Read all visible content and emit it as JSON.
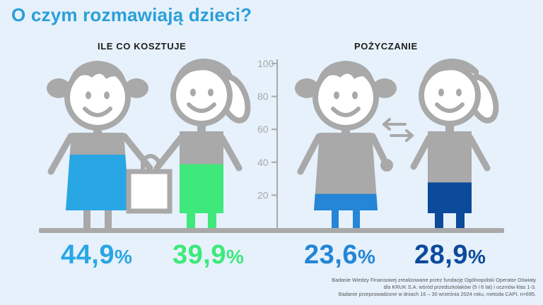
{
  "title": "O czym rozmawiają dzieci?",
  "colors": {
    "title": "#2a9fd8",
    "gray": "#a9a9a9",
    "girl_left": "#29a6e4",
    "boy_left": "#3ee87a",
    "girl_right": "#2585d6",
    "boy_right": "#0c4a9c",
    "background": "#e6f1fb"
  },
  "chart_data": {
    "type": "bar",
    "groups": [
      {
        "label": "ILE CO KOSZTUJE",
        "bars": [
          {
            "name": "girl",
            "value": 44.9,
            "label": "44,9",
            "color": "#29a6e4"
          },
          {
            "name": "boy",
            "value": 39.9,
            "label": "39,9",
            "color": "#3ee87a"
          }
        ]
      },
      {
        "label": "POŻYCZANIE",
        "bars": [
          {
            "name": "girl",
            "value": 23.6,
            "label": "23,6",
            "color": "#2585d6"
          },
          {
            "name": "boy",
            "value": 28.9,
            "label": "28,9",
            "color": "#0c4a9c"
          }
        ]
      }
    ],
    "unit": "%",
    "yticks": [
      "100",
      "80",
      "60",
      "40",
      "20"
    ],
    "ylim": [
      0,
      100
    ]
  },
  "footnote": {
    "line1": "Badanie Wiedzy Finansowej zrealizowane przez fundację Ogólnopolski Operator Oświaty",
    "line2": "dla KRUK S.A. wśród przedszkolaków (5 i 6 lat) i uczniów klas 1-3.",
    "line3": "Badanie przeprowadzone w dniach 16 – 30 września 2024 roku, metoda CAPI, n=695."
  }
}
